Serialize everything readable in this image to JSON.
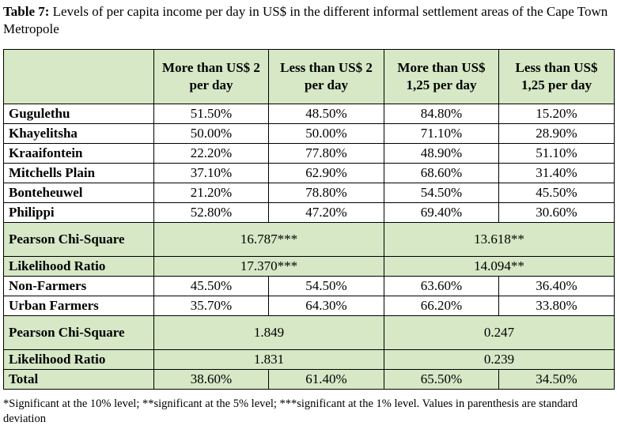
{
  "caption": {
    "label": "Table 7:",
    "text": " Levels of per capita income per day in US$ in the different informal settlement areas of the Cape Town Metropole"
  },
  "headers": [
    "More than US$ 2 per day",
    "Less than US$ 2 per day",
    "More than US$ 1,25 per day",
    "Less than US$ 1,25 per day"
  ],
  "areas": [
    {
      "name": "Gugulethu",
      "values": [
        "51.50%",
        "48.50%",
        "84.80%",
        "15.20%"
      ]
    },
    {
      "name": "Khayelitsha",
      "values": [
        "50.00%",
        "50.00%",
        "71.10%",
        "28.90%"
      ]
    },
    {
      "name": "Kraaifontein",
      "values": [
        "22.20%",
        "77.80%",
        "48.90%",
        "51.10%"
      ]
    },
    {
      "name": "Mitchells Plain",
      "values": [
        "37.10%",
        "62.90%",
        "68.60%",
        "31.40%"
      ]
    },
    {
      "name": "Bonteheuwel",
      "values": [
        "21.20%",
        "78.80%",
        "54.50%",
        "45.50%"
      ]
    },
    {
      "name": "Philippi",
      "values": [
        "52.80%",
        "47.20%",
        "69.40%",
        "30.60%"
      ]
    }
  ],
  "stats1": {
    "pearson_label": "Pearson Chi-Square",
    "pearson_2": "16.787***",
    "pearson_125": "13.618**",
    "lr_label": "Likelihood Ratio",
    "lr_2": "17.370***",
    "lr_125": "14.094**"
  },
  "groups": [
    {
      "name": "Non-Farmers",
      "values": [
        "45.50%",
        "54.50%",
        "63.60%",
        "36.40%"
      ]
    },
    {
      "name": "Urban Farmers",
      "values": [
        "35.70%",
        "64.30%",
        "66.20%",
        "33.80%"
      ]
    }
  ],
  "stats2": {
    "pearson_label": "Pearson Chi-Square",
    "pearson_2": "1.849",
    "pearson_125": "0.247",
    "lr_label": "Likelihood Ratio",
    "lr_2": "1.831",
    "lr_125": "0.239"
  },
  "total": {
    "name": "Total",
    "values": [
      "38.60%",
      "61.40%",
      "65.50%",
      "34.50%"
    ]
  },
  "footnote": "*Significant at the 10% level; **significant at the 5% level; ***significant at the 1% level.  Values in parenthesis are standard deviation"
}
